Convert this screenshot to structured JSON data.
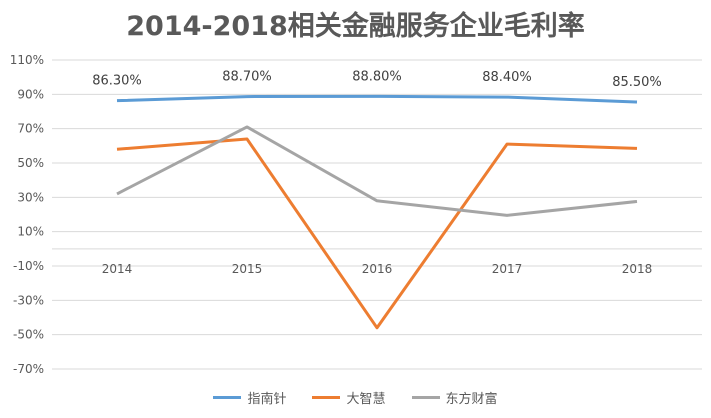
{
  "chart_data": {
    "type": "line",
    "title": "2014-2018相关金融服务企业毛利率",
    "categories": [
      "2014",
      "2015",
      "2016",
      "2017",
      "2018"
    ],
    "ylim": [
      -70,
      110
    ],
    "yticks": [
      "110%",
      "90%",
      "70%",
      "50%",
      "30%",
      "10%",
      "-10%",
      "-30%",
      "-50%",
      "-70%"
    ],
    "ytick_values": [
      110,
      90,
      70,
      50,
      30,
      10,
      -10,
      -30,
      -50,
      -70
    ],
    "grid": true,
    "legend": "bottom",
    "series": [
      {
        "name": "指南针",
        "color": "#5B9BD5",
        "values": [
          86.3,
          88.7,
          88.8,
          88.4,
          85.5
        ],
        "labels": [
          "86.30%",
          "88.70%",
          "88.80%",
          "88.40%",
          "85.50%"
        ]
      },
      {
        "name": "大智慧",
        "color": "#ED7D31",
        "values": [
          58,
          64,
          -46,
          61,
          58.5
        ]
      },
      {
        "name": "东方财富",
        "color": "#A5A5A5",
        "values": [
          32,
          71,
          28,
          19.5,
          27.6
        ]
      }
    ]
  }
}
